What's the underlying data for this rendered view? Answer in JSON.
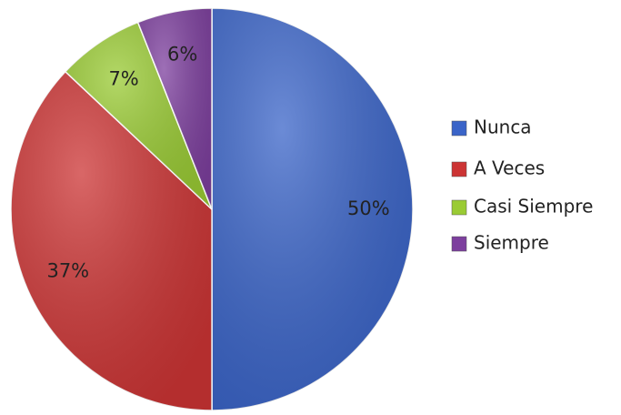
{
  "chart_data": {
    "type": "pie",
    "categories": [
      "Nunca",
      "A Veces",
      "Casi Siempre",
      "Siempre"
    ],
    "values": [
      50,
      37,
      7,
      6
    ],
    "value_labels": [
      "50%",
      "37%",
      "7%",
      "6%"
    ],
    "colors": [
      "#3a64c8",
      "#cc3434",
      "#9acb34",
      "#7d3f9e"
    ],
    "legend": "right"
  }
}
